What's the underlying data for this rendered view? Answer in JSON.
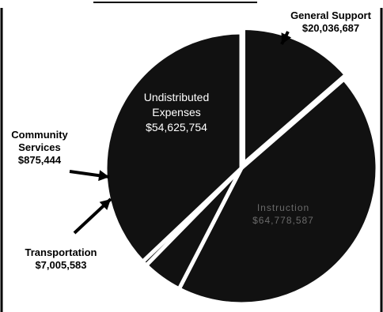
{
  "chart_data": {
    "type": "pie",
    "slices": [
      {
        "id": "general-support",
        "label_lines": [
          "General Support",
          "$20,036,687"
        ],
        "value": 20036687,
        "color": "#111111"
      },
      {
        "id": "instruction",
        "label_lines": [
          "Instruction",
          "$64,778,587"
        ],
        "value": 64778587,
        "color": "#111111"
      },
      {
        "id": "transportation",
        "label_lines": [
          "Transportation",
          "$7,005,583"
        ],
        "value": 7005583,
        "color": "#111111"
      },
      {
        "id": "community-services",
        "label_lines": [
          "Community",
          "Services",
          "$875,444"
        ],
        "value": 875444,
        "color": "#111111"
      },
      {
        "id": "undistributed-expenses",
        "label_lines": [
          "Undistributed",
          "Expenses",
          "$54,625,754"
        ],
        "value": 54625754,
        "color": "#111111"
      }
    ]
  }
}
